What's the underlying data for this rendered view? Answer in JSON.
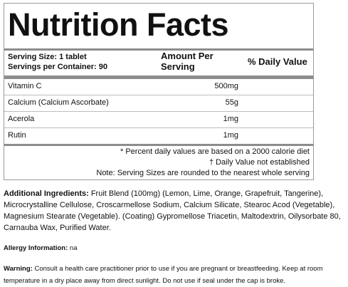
{
  "panel": {
    "title": "Nutrition Facts",
    "serving_size": "Serving Size: 1 tablet",
    "servings_per_container": "Servings per Container: 90",
    "amount_per_label_line1": "Amount Per",
    "amount_per_label_line2": "Serving",
    "daily_value_label": "% Daily Value",
    "rows": [
      {
        "name": "Vitamin C",
        "amount": "500mg"
      },
      {
        "name": "Calcium (Calcium Ascorbate)",
        "amount": "55g"
      },
      {
        "name": "Acerola",
        "amount": "1mg"
      },
      {
        "name": "Rutin",
        "amount": "1mg"
      }
    ],
    "footnotes": [
      "* Percent daily values are based on a 2000 calorie diet",
      "† Daily Value not established",
      "Note: Serving Sizes are rounded to the nearest whole serving"
    ]
  },
  "ingredients": {
    "label": "Additional Ingredients:",
    "text": " Fruit Blend (100mg) (Lemon, Lime, Orange, Grapefruit, Tangerine), Microcrystalline Cellulose, Croscarmellose Sodium, Calcium Silicate, Stearoc Acod (Vegetable), Magnesium Stearate (Vegetable). (Coating) Gypromellose Triacetin, Maltodextrin, Oilysorbate 80, Carnauba Wax, Purified Water."
  },
  "allergy": {
    "label": "Allergy Information:",
    "text": " na"
  },
  "warning": {
    "label": "Warning:",
    "text": " Consult a health care practitioner prior to use if you are pregnant or breastfeeding. Keep at room temperature in a dry place away from direct sunlight. Do not use if seal under the cap is broke."
  }
}
